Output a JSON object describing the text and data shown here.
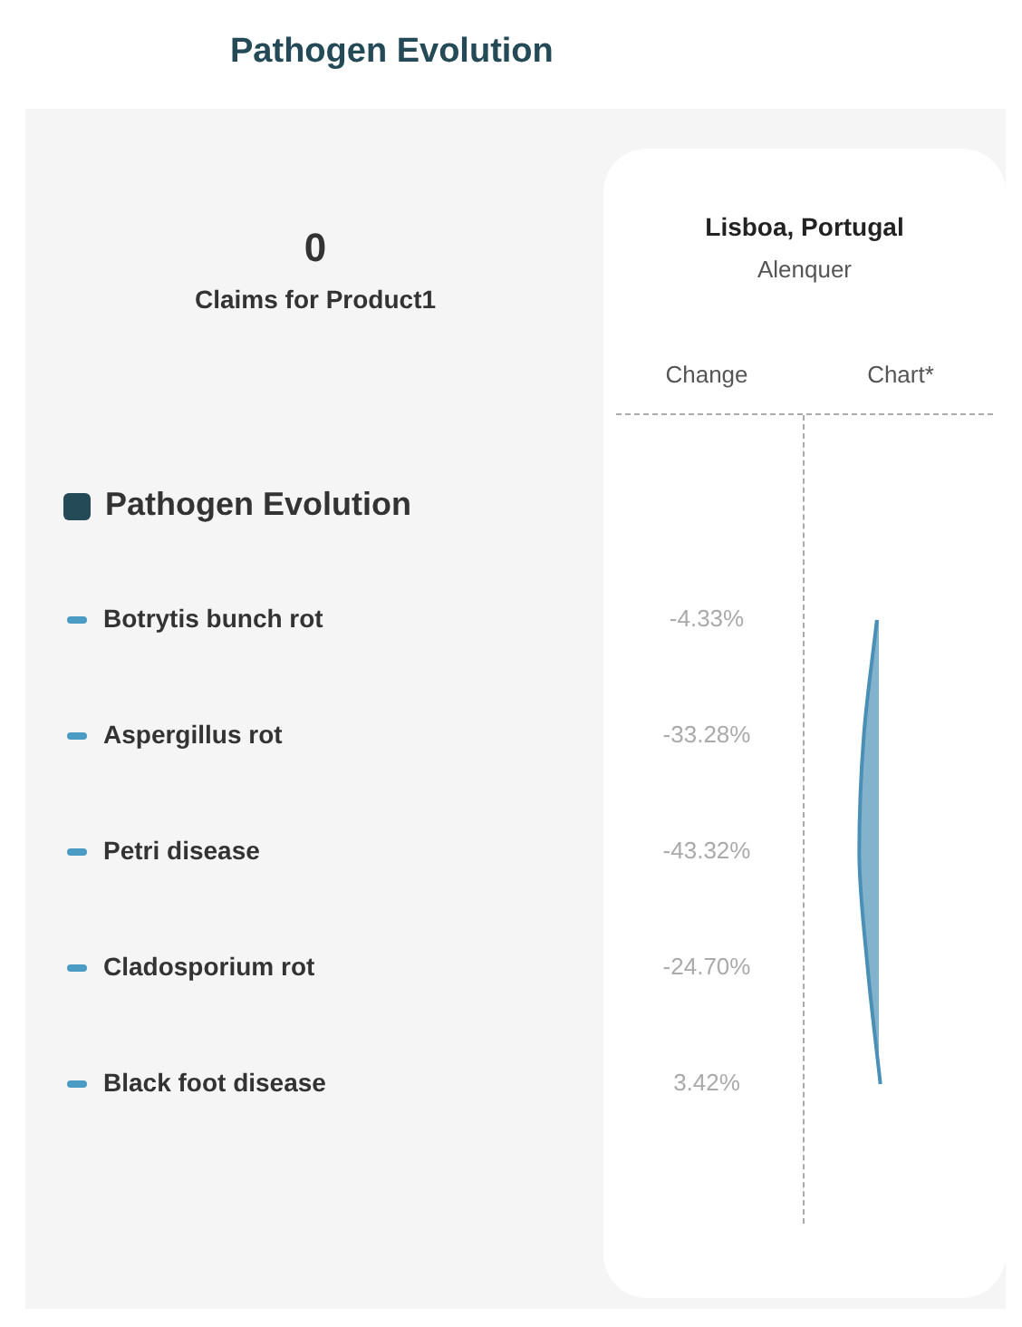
{
  "chart_data": {
    "type": "area",
    "title": "Pathogen Evolution",
    "subtitle": "Lisboa, Portugal",
    "legend_title": "Pathogen Evolution",
    "annotations": [
      "0",
      "Claims for Product1",
      "Alenquer",
      "Change",
      "Chart*"
    ],
    "orientation": "horizontal",
    "categories": [
      "Botrytis bunch rot",
      "Aspergillus rot",
      "Petri disease",
      "Cladosporium rot",
      "Black foot disease"
    ],
    "series": [
      {
        "color": "#4a8fb5",
        "values": [
          -4.33,
          -33.28,
          -43.32,
          -24.7,
          3.42
        ],
        "value_labels": [
          "-4.33%",
          "-33.28%",
          "-43.32%",
          "-24.70%",
          "3.42%"
        ]
      }
    ]
  }
}
